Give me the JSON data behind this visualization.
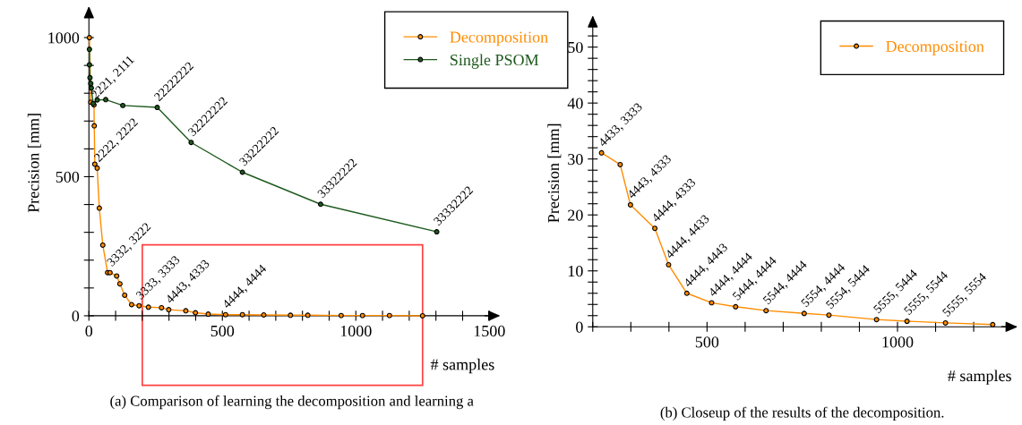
{
  "chart_data": [
    {
      "type": "line",
      "xlabel": "# samples",
      "ylabel": "Precision [mm]",
      "annotations": [
        "(a) Comparison of learning the decomposition and learning a",
        {
          "text": "2221, 2111",
          "x": 19,
          "y": 758
        },
        {
          "text": "2222, 2222",
          "x": 31,
          "y": 531
        },
        {
          "text": "3332, 3222",
          "x": 79,
          "y": 155
        },
        {
          "text": "3333, 3333",
          "x": 188,
          "y": 36
        },
        {
          "text": "4443, 4333",
          "x": 299,
          "y": 22
        },
        {
          "text": "4444, 4444",
          "x": 512,
          "y": 4
        },
        {
          "text": "22222222",
          "x": 256,
          "y": 749
        },
        {
          "text": "32222222",
          "x": 383,
          "y": 623
        },
        {
          "text": "33222222",
          "x": 575,
          "y": 516
        },
        {
          "text": "33322222",
          "x": 868,
          "y": 401
        },
        {
          "text": "33332222",
          "x": 1303,
          "y": 302
        }
      ],
      "xlim": [
        0,
        1520
      ],
      "ylim": [
        0,
        1100
      ],
      "xticks": [
        0,
        {
          "value": 100,
          "label": null
        },
        {
          "value": 200,
          "label": null
        },
        {
          "value": 300,
          "label": null
        },
        {
          "value": 400,
          "label": null
        },
        500,
        {
          "value": 600,
          "label": null
        },
        {
          "value": 700,
          "label": null
        },
        {
          "value": 800,
          "label": null
        },
        {
          "value": 900,
          "label": null
        },
        1000,
        {
          "value": 1100,
          "label": null
        },
        {
          "value": 1200,
          "label": null
        },
        {
          "value": 1300,
          "label": null
        },
        {
          "value": 1400,
          "label": null
        },
        1500
      ],
      "yticks": [
        0,
        {
          "value": 100,
          "label": null
        },
        {
          "value": 200,
          "label": null
        },
        {
          "value": 300,
          "label": null
        },
        {
          "value": 400,
          "label": null
        },
        500,
        {
          "value": 600,
          "label": null
        },
        {
          "value": 700,
          "label": null
        },
        {
          "value": 800,
          "label": null
        },
        {
          "value": 900,
          "label": null
        },
        1000
      ],
      "marker": "circle",
      "legend": "top right",
      "series": [
        {
          "name": "Decomposition",
          "color": "#ff8c00",
          "x": [
            2,
            7,
            19,
            20,
            22,
            31,
            39,
            52,
            70,
            79,
            104,
            116,
            134,
            160,
            188,
            223,
            272,
            299,
            363,
            399,
            447,
            512,
            575,
            655,
            755,
            820,
            945,
            1025,
            1126,
            1250
          ],
          "values": [
            1000,
            768,
            758,
            683,
            545,
            531,
            387,
            254,
            155,
            155,
            143,
            115,
            74,
            40,
            36,
            31,
            29,
            22,
            18,
            11,
            6,
            4,
            4,
            3,
            2,
            2,
            1,
            1,
            1,
            0
          ]
        },
        {
          "name": "Single PSOM",
          "color": "#1e5a1e",
          "x": [
            2,
            2,
            4,
            7,
            9,
            16,
            31,
            63,
            127,
            256,
            383,
            575,
            868,
            1303
          ],
          "values": [
            958,
            902,
            856,
            835,
            819,
            763,
            776,
            777,
            756,
            749,
            623,
            516,
            401,
            302
          ]
        }
      ]
    },
    {
      "type": "line",
      "xlabel": "# samples",
      "ylabel": "Precision [mm]",
      "annotations": [
        "(b) Closeup of the results of the decomposition.",
        {
          "text": "4433, 3333",
          "x": 223,
          "y": 31.1
        },
        {
          "text": "4443, 4333",
          "x": 299,
          "y": 21.8
        },
        {
          "text": "4444, 4333",
          "x": 363,
          "y": 17.6
        },
        {
          "text": "4444, 4433",
          "x": 399,
          "y": 11.1
        },
        {
          "text": "4444, 4443",
          "x": 447,
          "y": 6.0
        },
        {
          "text": "4444, 4444",
          "x": 512,
          "y": 4.3
        },
        {
          "text": "5444, 4444",
          "x": 575,
          "y": 3.6
        },
        {
          "text": "5544, 4444",
          "x": 655,
          "y": 2.9
        },
        {
          "text": "5554, 4444",
          "x": 755,
          "y": 2.4
        },
        {
          "text": "5554, 5444",
          "x": 820,
          "y": 2.1
        },
        {
          "text": "5555, 5444",
          "x": 945,
          "y": 1.3
        },
        {
          "text": "5555, 5544",
          "x": 1025,
          "y": 1.0
        },
        {
          "text": "5555, 5554",
          "x": 1126,
          "y": 0.7
        }
      ],
      "xlim": [
        200,
        1300
      ],
      "ylim": [
        0,
        55
      ],
      "xticks": [
        {
          "value": 200,
          "label": null
        },
        {
          "value": 300,
          "label": null
        },
        {
          "value": 400,
          "label": null
        },
        500,
        {
          "value": 600,
          "label": null
        },
        {
          "value": 700,
          "label": null
        },
        {
          "value": 800,
          "label": null
        },
        {
          "value": 900,
          "label": null
        },
        1000,
        {
          "value": 1100,
          "label": null
        },
        {
          "value": 1200,
          "label": null
        }
      ],
      "yticks": [
        0,
        {
          "value": 2,
          "label": null
        },
        {
          "value": 4,
          "label": null
        },
        {
          "value": 6,
          "label": null
        },
        {
          "value": 8,
          "label": null
        },
        10,
        {
          "value": 12,
          "label": null
        },
        {
          "value": 14,
          "label": null
        },
        {
          "value": 16,
          "label": null
        },
        {
          "value": 18,
          "label": null
        },
        20,
        {
          "value": 22,
          "label": null
        },
        {
          "value": 24,
          "label": null
        },
        {
          "value": 26,
          "label": null
        },
        {
          "value": 28,
          "label": null
        },
        30,
        {
          "value": 32,
          "label": null
        },
        {
          "value": 34,
          "label": null
        },
        {
          "value": 36,
          "label": null
        },
        {
          "value": 38,
          "label": null
        },
        40,
        {
          "value": 42,
          "label": null
        },
        {
          "value": 44,
          "label": null
        },
        {
          "value": 46,
          "label": null
        },
        {
          "value": 48,
          "label": null
        },
        50,
        {
          "value": 52,
          "label": null
        }
      ],
      "marker": "circle",
      "legend": "top right",
      "series": [
        {
          "name": "Decomposition",
          "color": "#ff8c00",
          "x": [
            223,
            272,
            299,
            363,
            399,
            447,
            512,
            575,
            655,
            755,
            820,
            945,
            1025,
            1126,
            1250
          ],
          "values": [
            31.1,
            29.0,
            21.8,
            17.6,
            11.1,
            6.0,
            4.3,
            3.6,
            2.9,
            2.4,
            2.1,
            1.3,
            1.0,
            0.7,
            0.4
          ]
        }
      ]
    }
  ]
}
